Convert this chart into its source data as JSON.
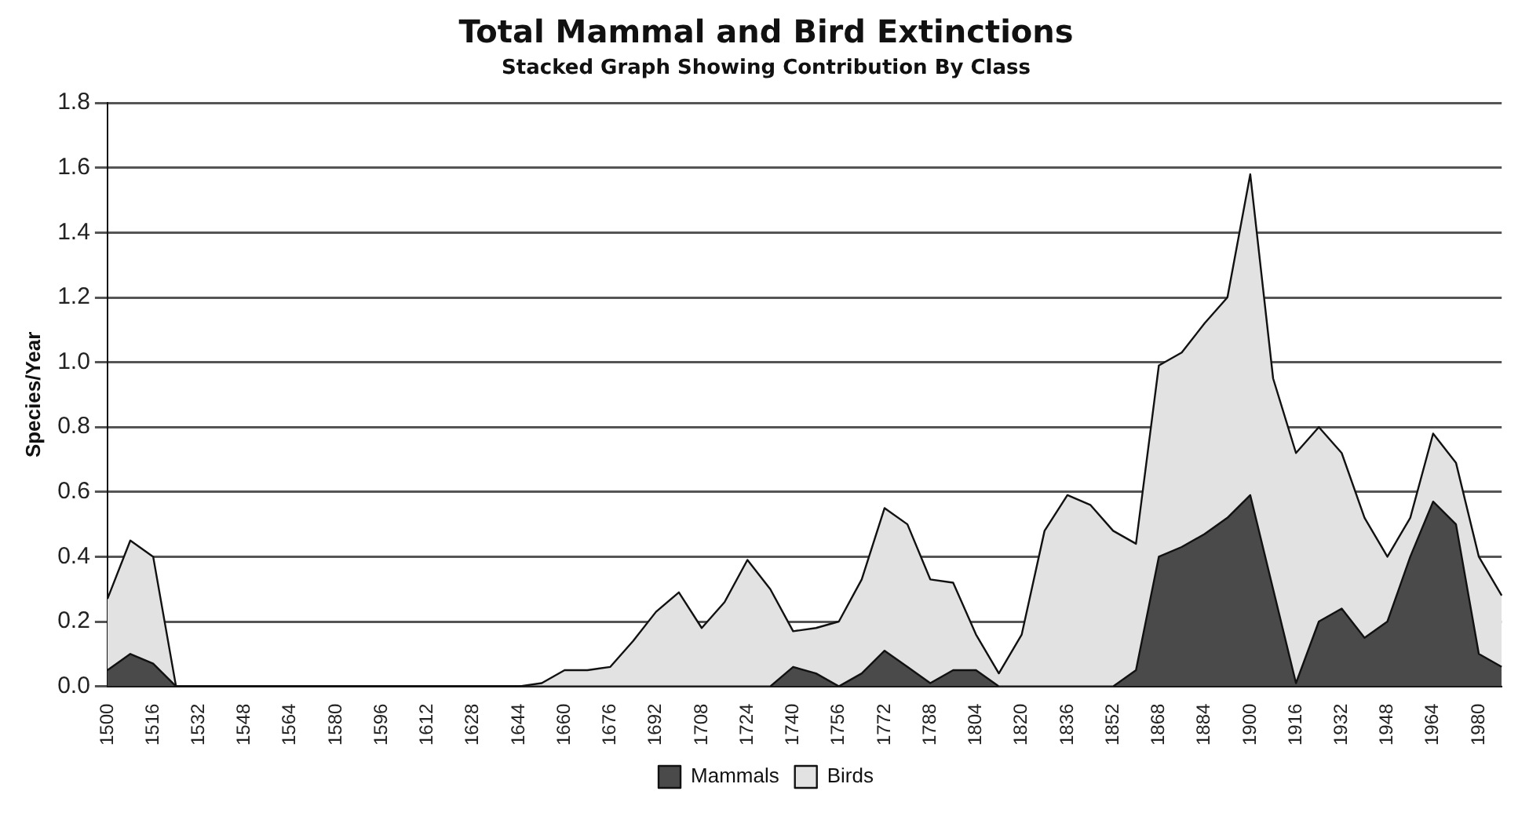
{
  "chart_data": {
    "type": "area",
    "title": "Total Mammal and Bird Extinctions",
    "subtitle": "Stacked Graph Showing Contribution By Class",
    "ylabel": "Species/Year",
    "stacked": true,
    "categories": [
      "1500",
      null,
      "1516",
      null,
      "1532",
      null,
      "1548",
      null,
      "1564",
      null,
      "1580",
      null,
      "1596",
      null,
      "1612",
      null,
      "1628",
      null,
      "1644",
      null,
      "1660",
      null,
      "1676",
      null,
      "1692",
      null,
      "1708",
      null,
      "1724",
      null,
      "1740",
      null,
      "1756",
      null,
      "1772",
      null,
      "1788",
      null,
      "1804",
      null,
      "1820",
      null,
      "1836",
      null,
      "1852",
      null,
      "1868",
      null,
      "1884",
      null,
      "1900",
      null,
      "1916",
      null,
      "1932",
      null,
      "1948",
      null,
      "1964",
      null,
      "1980",
      null
    ],
    "series": [
      {
        "name": "Mammals",
        "color": "#4a4a4a",
        "values": [
          0.05,
          0.1,
          0.07,
          0,
          0,
          0,
          0,
          0,
          0,
          0,
          0,
          0,
          0,
          0,
          0,
          0,
          0,
          0,
          0,
          0,
          0,
          0,
          0,
          0,
          0,
          0,
          0,
          0,
          0,
          0,
          0.06,
          0.04,
          0,
          0.04,
          0.11,
          0.06,
          0.01,
          0.05,
          0.05,
          0,
          0,
          0,
          0,
          0,
          0,
          0.05,
          0.4,
          0.43,
          0.47,
          0.52,
          0.59,
          0.3,
          0.01,
          0.2,
          0.24,
          0.15,
          0.2,
          0.4,
          0.57,
          0.5,
          0.1,
          0.06
        ]
      },
      {
        "name": "Birds",
        "color": "#e2e2e2",
        "values": [
          0.22,
          0.35,
          0.33,
          0,
          0,
          0,
          0,
          0,
          0,
          0,
          0,
          0,
          0,
          0,
          0,
          0,
          0,
          0,
          0,
          0.01,
          0.05,
          0.05,
          0.06,
          0.14,
          0.23,
          0.29,
          0.18,
          0.26,
          0.39,
          0.3,
          0.11,
          0.14,
          0.2,
          0.29,
          0.44,
          0.44,
          0.32,
          0.27,
          0.11,
          0.04,
          0.16,
          0.48,
          0.59,
          0.56,
          0.48,
          0.39,
          0.59,
          0.6,
          0.65,
          0.68,
          0.99,
          0.65,
          0.71,
          0.6,
          0.48,
          0.37,
          0.2,
          0.12,
          0.21,
          0.19,
          0.3,
          0.22
        ]
      }
    ],
    "ylim": [
      0,
      1.8
    ],
    "yticks": [
      {
        "value": 0,
        "label": "0.0"
      },
      0.2,
      0.4,
      0.6,
      0.8,
      {
        "value": 1,
        "label": "1.0"
      },
      1.2,
      1.4,
      1.6,
      1.8
    ],
    "grid": "y",
    "legend": "bottom"
  }
}
